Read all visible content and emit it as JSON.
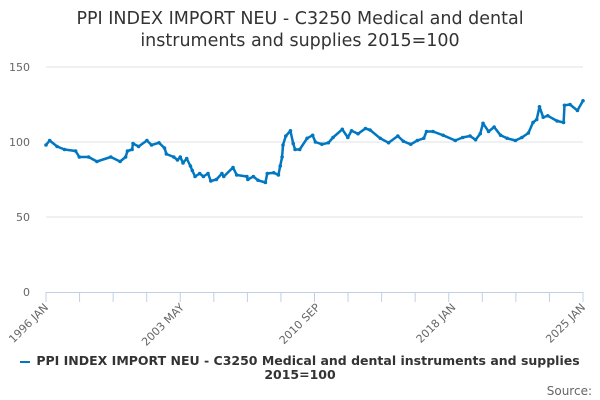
{
  "chart_data": {
    "type": "line",
    "title_line1": "PPI INDEX IMPORT NEU - C3250 Medical and dental",
    "title_line2": "instruments and supplies 2015=100",
    "series_name": "PPI INDEX IMPORT NEU - C3250 Medical and dental instruments and supplies 2015=100",
    "color": "#0077c0",
    "ylim": [
      0,
      150
    ],
    "yticks": [
      "0",
      "50",
      "100",
      "150"
    ],
    "xlim": [
      1996.0,
      2025.0
    ],
    "xtick_labels": [
      {
        "label": "1996 JAN",
        "x": 1996.0
      },
      {
        "label": "2003 MAY",
        "x": 2003.33
      },
      {
        "label": "2010 SEP",
        "x": 2010.67
      },
      {
        "label": "2018 JAN",
        "x": 2018.0
      },
      {
        "label": "2025 JAN",
        "x": 2025.0
      }
    ],
    "legend_position": "bottom",
    "grid": true,
    "points": [
      [
        1996.0,
        98
      ],
      [
        1996.2,
        101
      ],
      [
        1996.6,
        97
      ],
      [
        1997.0,
        95
      ],
      [
        1997.6,
        94
      ],
      [
        1997.8,
        90
      ],
      [
        1998.3,
        90
      ],
      [
        1998.75,
        87
      ],
      [
        1999.5,
        90
      ],
      [
        2000.0,
        87
      ],
      [
        2000.3,
        90
      ],
      [
        2000.4,
        94
      ],
      [
        2000.65,
        95
      ],
      [
        2000.7,
        99
      ],
      [
        2001.0,
        97
      ],
      [
        2001.45,
        101
      ],
      [
        2001.7,
        98
      ],
      [
        2002.1,
        99.5
      ],
      [
        2002.4,
        96
      ],
      [
        2002.5,
        92
      ],
      [
        2002.9,
        90
      ],
      [
        2003.1,
        88
      ],
      [
        2003.25,
        90
      ],
      [
        2003.4,
        86
      ],
      [
        2003.6,
        89
      ],
      [
        2003.8,
        84
      ],
      [
        2003.9,
        81
      ],
      [
        2004.05,
        77
      ],
      [
        2004.3,
        79
      ],
      [
        2004.5,
        77
      ],
      [
        2004.75,
        79
      ],
      [
        2004.9,
        74
      ],
      [
        2005.2,
        75
      ],
      [
        2005.5,
        79
      ],
      [
        2005.6,
        77
      ],
      [
        2006.1,
        83
      ],
      [
        2006.3,
        78
      ],
      [
        2006.85,
        77
      ],
      [
        2006.9,
        75
      ],
      [
        2007.2,
        77
      ],
      [
        2007.45,
        74.5
      ],
      [
        2007.85,
        73
      ],
      [
        2007.95,
        79
      ],
      [
        2008.3,
        79.5
      ],
      [
        2008.55,
        78
      ],
      [
        2008.65,
        84
      ],
      [
        2008.75,
        90
      ],
      [
        2008.8,
        98
      ],
      [
        2008.95,
        104
      ],
      [
        2009.2,
        107.5
      ],
      [
        2009.35,
        99
      ],
      [
        2009.45,
        95
      ],
      [
        2009.7,
        95
      ],
      [
        2010.1,
        102.5
      ],
      [
        2010.4,
        104.5
      ],
      [
        2010.55,
        100
      ],
      [
        2010.9,
        98.5
      ],
      [
        2011.25,
        99.5
      ],
      [
        2011.5,
        103
      ],
      [
        2012.0,
        108.5
      ],
      [
        2012.3,
        103
      ],
      [
        2012.5,
        107.5
      ],
      [
        2012.85,
        105.5
      ],
      [
        2013.25,
        109
      ],
      [
        2013.5,
        108
      ],
      [
        2014.05,
        102.5
      ],
      [
        2014.5,
        99.5
      ],
      [
        2015.0,
        104
      ],
      [
        2015.3,
        100.5
      ],
      [
        2015.7,
        98.5
      ],
      [
        2016.05,
        101
      ],
      [
        2016.4,
        102.5
      ],
      [
        2016.55,
        107
      ],
      [
        2016.9,
        107
      ],
      [
        2017.45,
        104.5
      ],
      [
        2018.1,
        101
      ],
      [
        2018.5,
        103
      ],
      [
        2018.9,
        104
      ],
      [
        2019.2,
        101.5
      ],
      [
        2019.45,
        105.5
      ],
      [
        2019.6,
        112.5
      ],
      [
        2019.9,
        107
      ],
      [
        2020.2,
        110
      ],
      [
        2020.55,
        104.5
      ],
      [
        2020.9,
        102.5
      ],
      [
        2021.35,
        101
      ],
      [
        2021.7,
        103
      ],
      [
        2022.05,
        106
      ],
      [
        2022.3,
        113
      ],
      [
        2022.5,
        115
      ],
      [
        2022.65,
        123.5
      ],
      [
        2022.85,
        116.5
      ],
      [
        2023.1,
        117.5
      ],
      [
        2023.6,
        114
      ],
      [
        2023.95,
        113
      ],
      [
        2024.0,
        124.5
      ],
      [
        2024.3,
        125
      ],
      [
        2024.7,
        121
      ],
      [
        2025.0,
        127.5
      ]
    ]
  },
  "footer": {
    "source_label": "Source:"
  }
}
